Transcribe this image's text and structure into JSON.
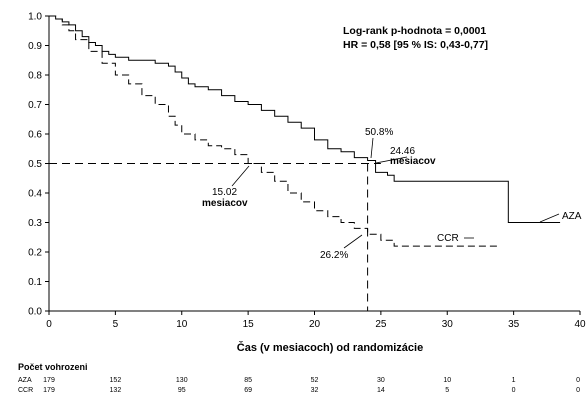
{
  "chart_data": {
    "type": "line",
    "title": "",
    "xlabel": "Čas (v mesiacoch) od randomizácie",
    "ylabel": "",
    "xlim": [
      0,
      40
    ],
    "ylim": [
      0.0,
      1.0
    ],
    "xticks": [
      "0",
      "5",
      "10",
      "15",
      "20",
      "25",
      "30",
      "35",
      "40"
    ],
    "yticks": [
      "0.0",
      "0.1",
      "0.2",
      "0.3",
      "0.4",
      "0.5",
      "0.6",
      "0.7",
      "0.8",
      "0.9",
      "1.0"
    ],
    "grid": false,
    "stats": {
      "line1": "Log-rank p-hodnota = 0,0001",
      "line2": "HR = 0,58 [95 % IS: 0,43-0,77]"
    },
    "series": [
      {
        "name": "AZA",
        "style": "solid",
        "points": [
          [
            0,
            1.0
          ],
          [
            0.5,
            0.99
          ],
          [
            1,
            0.98
          ],
          [
            1.5,
            0.97
          ],
          [
            2,
            0.95
          ],
          [
            2.5,
            0.93
          ],
          [
            3,
            0.91
          ],
          [
            3.5,
            0.9
          ],
          [
            4,
            0.88
          ],
          [
            4.5,
            0.87
          ],
          [
            5,
            0.86
          ],
          [
            6,
            0.85
          ],
          [
            7.5,
            0.85
          ],
          [
            8,
            0.84
          ],
          [
            9,
            0.83
          ],
          [
            9.5,
            0.81
          ],
          [
            10,
            0.79
          ],
          [
            10.5,
            0.77
          ],
          [
            11,
            0.76
          ],
          [
            12,
            0.75
          ],
          [
            13,
            0.73
          ],
          [
            14,
            0.71
          ],
          [
            15,
            0.7
          ],
          [
            16,
            0.68
          ],
          [
            17,
            0.66
          ],
          [
            18,
            0.64
          ],
          [
            19,
            0.62
          ],
          [
            20,
            0.58
          ],
          [
            21,
            0.55
          ],
          [
            22,
            0.54
          ],
          [
            23,
            0.52
          ],
          [
            24,
            0.51
          ],
          [
            24.5,
            0.51
          ],
          [
            24.6,
            0.47
          ],
          [
            25.5,
            0.46
          ],
          [
            26,
            0.44
          ],
          [
            30,
            0.44
          ],
          [
            34.5,
            0.44
          ],
          [
            34.6,
            0.3
          ],
          [
            38.5,
            0.3
          ]
        ]
      },
      {
        "name": "CCR",
        "style": "dashed",
        "points": [
          [
            0,
            1.0
          ],
          [
            0.5,
            0.99
          ],
          [
            1,
            0.97
          ],
          [
            1.5,
            0.95
          ],
          [
            2,
            0.92
          ],
          [
            3,
            0.88
          ],
          [
            4,
            0.84
          ],
          [
            5,
            0.8
          ],
          [
            6,
            0.77
          ],
          [
            7,
            0.73
          ],
          [
            8,
            0.7
          ],
          [
            9,
            0.66
          ],
          [
            9.5,
            0.63
          ],
          [
            10,
            0.6
          ],
          [
            11,
            0.58
          ],
          [
            12,
            0.56
          ],
          [
            13,
            0.55
          ],
          [
            14,
            0.53
          ],
          [
            15,
            0.5
          ],
          [
            16,
            0.47
          ],
          [
            17,
            0.44
          ],
          [
            18,
            0.4
          ],
          [
            19,
            0.37
          ],
          [
            20,
            0.34
          ],
          [
            21,
            0.32
          ],
          [
            22,
            0.3
          ],
          [
            23,
            0.28
          ],
          [
            24,
            0.26
          ],
          [
            25,
            0.24
          ],
          [
            26,
            0.22
          ],
          [
            28,
            0.22
          ],
          [
            30,
            0.22
          ],
          [
            34,
            0.22
          ]
        ]
      }
    ],
    "reference_lines": {
      "y": 0.5,
      "x": [
        15.02,
        24.46
      ],
      "x_vertical": 24
    },
    "annotations": [
      {
        "text": "50.8%",
        "x": 24.3,
        "y": 0.51
      },
      {
        "text": "24.46",
        "x": 24.46,
        "y": 0.5
      },
      {
        "text": "mesiacov",
        "x": 24.46,
        "y": 0.5
      },
      {
        "text": "15.02",
        "x": 15.02,
        "y": 0.5
      },
      {
        "text": "mesiacov",
        "x": 15.02,
        "y": 0.5
      },
      {
        "text": "26.2%",
        "x": 24,
        "y": 0.26
      },
      {
        "text": "CCR",
        "x": 34,
        "y": 0.22
      },
      {
        "text": "AZA",
        "x": 38.5,
        "y": 0.3
      }
    ]
  },
  "risk_table": {
    "title": "Počet vohrozeni",
    "times": [
      0,
      5,
      10,
      15,
      20,
      25,
      30,
      35,
      40
    ],
    "rows": [
      {
        "label": "AZA",
        "values": [
          "179",
          "152",
          "130",
          "85",
          "52",
          "30",
          "10",
          "1",
          "0"
        ]
      },
      {
        "label": "CCR",
        "values": [
          "179",
          "132",
          "95",
          "69",
          "32",
          "14",
          "5",
          "0",
          "0"
        ]
      }
    ]
  }
}
